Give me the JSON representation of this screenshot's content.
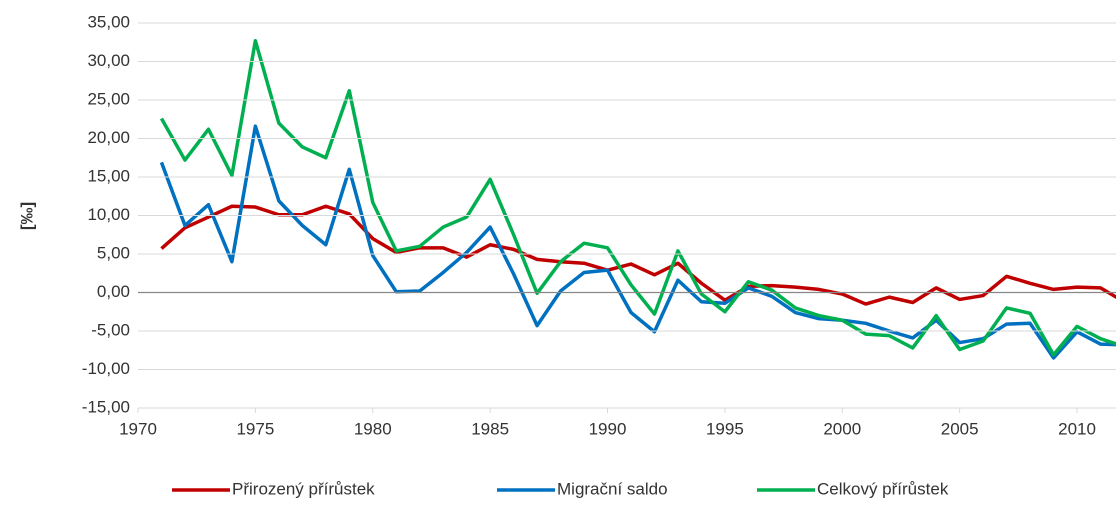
{
  "chart_data": {
    "type": "line",
    "ylabel": "[‰]",
    "x": [
      1971,
      1972,
      1973,
      1974,
      1975,
      1976,
      1977,
      1978,
      1979,
      1980,
      1981,
      1982,
      1983,
      1984,
      1985,
      1986,
      1987,
      1988,
      1989,
      1990,
      1991,
      1992,
      1993,
      1994,
      1995,
      1996,
      1997,
      1998,
      1999,
      2000,
      2001,
      2002,
      2003,
      2004,
      2005,
      2006,
      2007,
      2008,
      2009,
      2010,
      2011,
      2012
    ],
    "series": [
      {
        "name": "Přirozený přírůstek",
        "color": "#c00000",
        "values": [
          5.7,
          8.4,
          9.8,
          11.2,
          11.1,
          10.1,
          10.1,
          11.2,
          10.2,
          7.0,
          5.2,
          5.8,
          5.8,
          4.6,
          6.2,
          5.6,
          4.3,
          4.0,
          3.8,
          2.9,
          3.7,
          2.3,
          3.8,
          1.2,
          -1.0,
          0.8,
          0.9,
          0.7,
          0.4,
          -0.2,
          -1.5,
          -0.6,
          -1.3,
          0.6,
          -0.9,
          -0.4,
          2.1,
          1.2,
          0.4,
          0.7,
          0.6,
          -1.2
        ]
      },
      {
        "name": "Migrační saldo",
        "color": "#0070c0",
        "values": [
          16.9,
          8.7,
          11.4,
          4.0,
          21.6,
          11.9,
          8.7,
          6.2,
          16.0,
          4.8,
          0.1,
          0.2,
          2.6,
          5.2,
          8.5,
          2.4,
          -4.3,
          0.2,
          2.6,
          2.9,
          -2.6,
          -5.1,
          1.6,
          -1.2,
          -1.4,
          0.6,
          -0.5,
          -2.6,
          -3.4,
          -3.6,
          -4.0,
          -5.0,
          -5.9,
          -3.6,
          -6.5,
          -6.0,
          -4.1,
          -4.0,
          -8.5,
          -5.1,
          -6.7,
          -6.8
        ]
      },
      {
        "name": "Celkový přírůstek",
        "color": "#00b050",
        "values": [
          22.6,
          17.2,
          21.2,
          15.2,
          32.7,
          22.0,
          18.9,
          17.5,
          26.2,
          11.7,
          5.4,
          6.0,
          8.5,
          9.8,
          14.7,
          7.5,
          -0.1,
          4.0,
          6.4,
          5.8,
          1.0,
          -2.8,
          5.4,
          -0.2,
          -2.5,
          1.4,
          0.3,
          -2.0,
          -3.0,
          -3.6,
          -5.4,
          -5.6,
          -7.2,
          -3.0,
          -7.4,
          -6.3,
          -2.0,
          -2.7,
          -8.1,
          -4.4,
          -6.0,
          -7.0
        ]
      }
    ],
    "xlim": [
      1970,
      2011.66
    ],
    "xticks": [
      1970,
      1975,
      1980,
      1985,
      1990,
      1995,
      2000,
      2005,
      2010
    ],
    "ylim": [
      -15,
      35
    ],
    "yticks": [
      {
        "value": -15,
        "label": "-15,00"
      },
      {
        "value": -10,
        "label": "-10,00"
      },
      {
        "value": -5,
        "label": "-5,00"
      },
      {
        "value": 0,
        "label": "0,00"
      },
      {
        "value": 5,
        "label": "5,00"
      },
      {
        "value": 10,
        "label": "10,00"
      },
      {
        "value": 15,
        "label": "15,00"
      },
      {
        "value": 20,
        "label": "20,00"
      },
      {
        "value": 25,
        "label": "25,00"
      },
      {
        "value": 30,
        "label": "30,00"
      },
      {
        "value": 35,
        "label": "35,00"
      }
    ],
    "grid": true,
    "legend": "bottom"
  }
}
